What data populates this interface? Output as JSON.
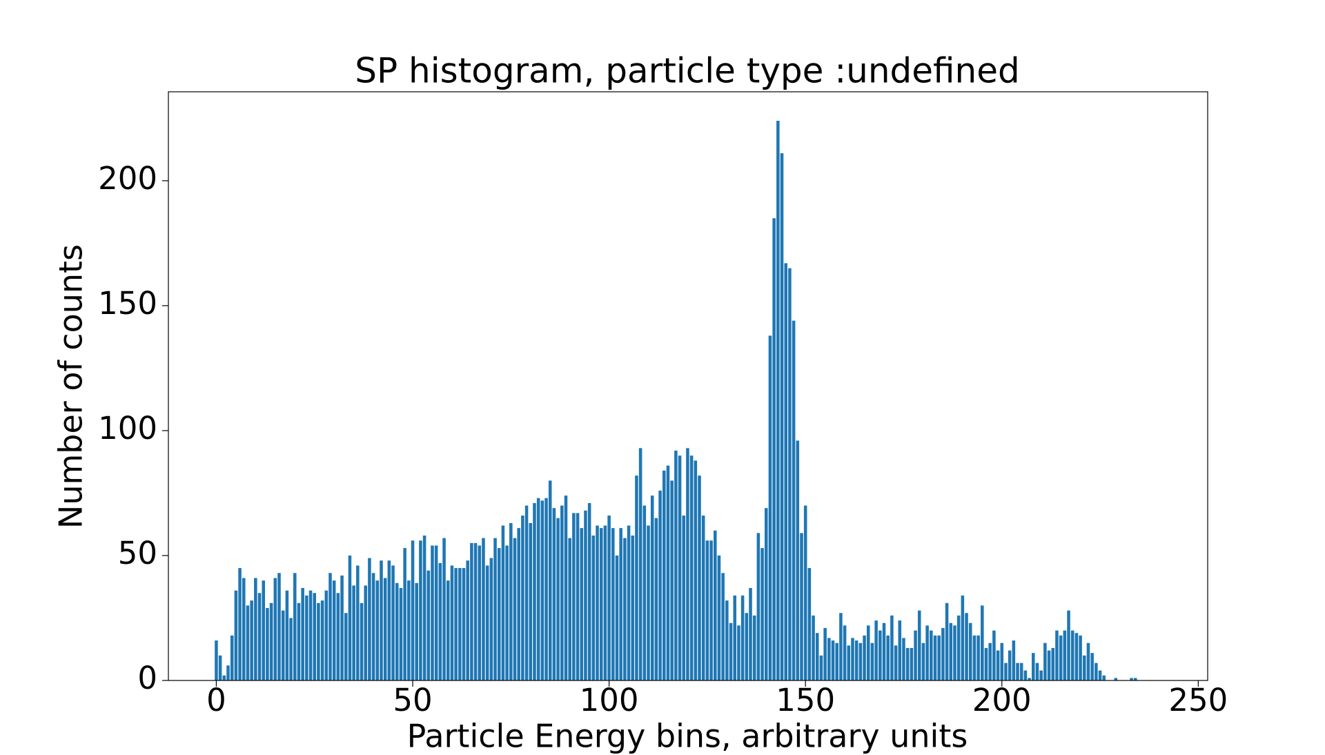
{
  "chart_data": {
    "type": "bar",
    "title": "SP histogram, particle type :undefined",
    "xlabel": "Particle Energy bins, arbitrary units",
    "ylabel": "Number of counts",
    "color": "#1f77b4",
    "x": [
      0,
      1,
      2,
      3,
      4,
      5,
      6,
      7,
      8,
      9,
      10,
      11,
      12,
      13,
      14,
      15,
      16,
      17,
      18,
      19,
      20,
      21,
      22,
      23,
      24,
      25,
      26,
      27,
      28,
      29,
      30,
      31,
      32,
      33,
      34,
      35,
      36,
      37,
      38,
      39,
      40,
      41,
      42,
      43,
      44,
      45,
      46,
      47,
      48,
      49,
      50,
      51,
      52,
      53,
      54,
      55,
      56,
      57,
      58,
      59,
      60,
      61,
      62,
      63,
      64,
      65,
      66,
      67,
      68,
      69,
      70,
      71,
      72,
      73,
      74,
      75,
      76,
      77,
      78,
      79,
      80,
      81,
      82,
      83,
      84,
      85,
      86,
      87,
      88,
      89,
      90,
      91,
      92,
      93,
      94,
      95,
      96,
      97,
      98,
      99,
      100,
      101,
      102,
      103,
      104,
      105,
      106,
      107,
      108,
      109,
      110,
      111,
      112,
      113,
      114,
      115,
      116,
      117,
      118,
      119,
      120,
      121,
      122,
      123,
      124,
      125,
      126,
      127,
      128,
      129,
      130,
      131,
      132,
      133,
      134,
      135,
      136,
      137,
      138,
      139,
      140,
      141,
      142,
      143,
      144,
      145,
      146,
      147,
      148,
      149,
      150,
      151,
      152,
      153,
      154,
      155,
      156,
      157,
      158,
      159,
      160,
      161,
      162,
      163,
      164,
      165,
      166,
      167,
      168,
      169,
      170,
      171,
      172,
      173,
      174,
      175,
      176,
      177,
      178,
      179,
      180,
      181,
      182,
      183,
      184,
      185,
      186,
      187,
      188,
      189,
      190,
      191,
      192,
      193,
      194,
      195,
      196,
      197,
      198,
      199,
      200,
      201,
      202,
      203,
      204,
      205,
      206,
      207,
      208,
      209,
      210,
      211,
      212,
      213,
      214,
      215,
      216,
      217,
      218,
      219,
      220,
      221,
      222,
      223,
      224,
      225,
      226,
      227,
      228,
      229,
      230,
      231,
      232,
      233,
      234
    ],
    "values": [
      16,
      10,
      2,
      6,
      18,
      36,
      45,
      41,
      30,
      32,
      41,
      35,
      40,
      29,
      31,
      41,
      43,
      28,
      36,
      25,
      43,
      31,
      37,
      34,
      36,
      35,
      31,
      32,
      36,
      43,
      40,
      35,
      42,
      27,
      50,
      38,
      46,
      31,
      38,
      49,
      43,
      40,
      48,
      41,
      48,
      46,
      39,
      37,
      53,
      40,
      56,
      39,
      56,
      58,
      44,
      54,
      54,
      47,
      57,
      40,
      46,
      45,
      45,
      45,
      48,
      55,
      55,
      54,
      57,
      46,
      49,
      57,
      53,
      62,
      54,
      63,
      57,
      61,
      66,
      70,
      63,
      71,
      73,
      72,
      73,
      80,
      69,
      65,
      70,
      74,
      57,
      67,
      67,
      61,
      68,
      71,
      58,
      62,
      61,
      62,
      66,
      61,
      50,
      61,
      57,
      62,
      58,
      82,
      93,
      70,
      62,
      74,
      65,
      76,
      84,
      86,
      80,
      92,
      90,
      66,
      93,
      90,
      88,
      82,
      66,
      56,
      56,
      60,
      50,
      43,
      32,
      23,
      34,
      22,
      34,
      27,
      37,
      26,
      59,
      53,
      69,
      138,
      185,
      224,
      211,
      167,
      165,
      144,
      96,
      59,
      70,
      45,
      26,
      19,
      10,
      21,
      17,
      16,
      15,
      27,
      22,
      14,
      17,
      16,
      15,
      18,
      22,
      15,
      24,
      20,
      23,
      18,
      26,
      14,
      24,
      17,
      13,
      13,
      20,
      28,
      15,
      22,
      20,
      18,
      18,
      21,
      31,
      23,
      22,
      26,
      34,
      27,
      23,
      18,
      18,
      30,
      13,
      15,
      20,
      12,
      15,
      7,
      12,
      16,
      7,
      7,
      4,
      1,
      11,
      7,
      4,
      15,
      12,
      13,
      20,
      18,
      20,
      28,
      20,
      19,
      18,
      10,
      15,
      11,
      7,
      4,
      2,
      0,
      0,
      1,
      0,
      0,
      0,
      1,
      1
    ],
    "xlim": [
      -12.2,
      252.4
    ],
    "xticks": [
      0,
      50,
      100,
      150,
      200,
      250
    ],
    "ylim": [
      0,
      235.6
    ],
    "yticks": [
      0,
      50,
      100,
      150,
      200
    ]
  }
}
